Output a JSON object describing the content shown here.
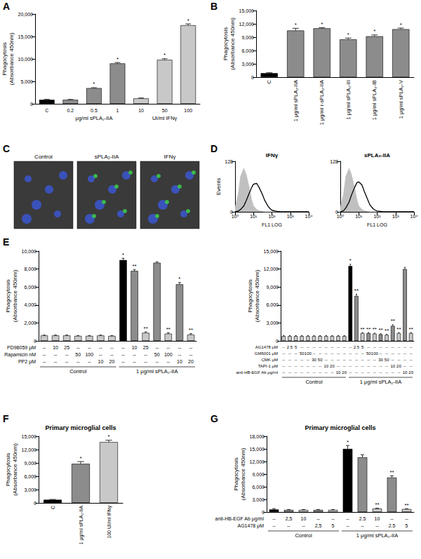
{
  "chart_data": [
    {
      "panel": "A",
      "type": "bar",
      "y_label": "Phagocytosis\n(Absorbance 450nm)",
      "categories": [
        "C",
        "0.2",
        "0.5",
        "1",
        "10",
        "50",
        "100"
      ],
      "groups": [
        null,
        "μg/ml sPLA₂-IIA",
        "μg/ml sPLA₂-IIA",
        "μg/ml sPLA₂-IIA",
        "UI/ml IFNγ",
        "UI/ml IFNγ",
        "UI/ml IFNγ"
      ],
      "values": [
        900,
        900,
        3500,
        9000,
        1200,
        9800,
        17500
      ],
      "errors": [
        100,
        80,
        100,
        200,
        100,
        250,
        300
      ],
      "annotations": [
        null,
        null,
        "*",
        "*",
        null,
        "*",
        "*"
      ],
      "colors": [
        "#000000",
        "#8c8c8c",
        "#8c8c8c",
        "#8c8c8c",
        "#c8c8c8",
        "#c8c8c8",
        "#c8c8c8"
      ],
      "ylim": [
        0,
        20000
      ],
      "yticks": [
        0,
        5000,
        10000,
        15000,
        20000
      ],
      "grid": false
    },
    {
      "panel": "B",
      "type": "bar",
      "y_label": "Phagocytosis\n(Absorbance 450nm)",
      "categories": [
        "C",
        "1 μg/ml sPLA₂-IIA",
        "1 μg/ml r-sPLA₂-IIA",
        "1 μg/ml sPLA₂-III",
        "1 μg/ml sPLA₂-IB",
        "1 μg/ml sPLA₂-V"
      ],
      "values": [
        900,
        10500,
        11000,
        8500,
        9200,
        10800
      ],
      "errors": [
        100,
        500,
        150,
        300,
        300,
        250
      ],
      "annotations": [
        null,
        "*",
        "*",
        "*",
        "*",
        "*"
      ],
      "colors": [
        "#000000",
        "#8c8c8c",
        "#8c8c8c",
        "#8c8c8c",
        "#8c8c8c",
        "#8c8c8c"
      ],
      "ylim": [
        0,
        15000
      ],
      "yticks": [
        0,
        3000,
        6000,
        9000,
        12000,
        15000
      ],
      "grid": false
    },
    {
      "panel": "D",
      "type": "line",
      "title": "IFNγ",
      "x_label": "FL1 LOG",
      "y_label": "Events",
      "log": "x",
      "x": [
        1,
        1.5,
        2,
        3,
        4,
        6,
        8,
        10,
        15,
        20,
        30,
        40,
        60,
        80,
        100,
        150,
        200,
        300,
        500,
        1000,
        10000
      ],
      "series": [
        {
          "type": "area",
          "color": "#c0c0c0",
          "values": [
            10,
            45,
            90,
            110,
            95,
            60,
            30,
            15,
            6,
            3,
            1,
            0,
            0,
            0,
            0,
            0,
            0,
            0,
            0,
            0,
            0
          ]
        },
        {
          "type": "line",
          "color": "#000000",
          "values": [
            0,
            2,
            6,
            15,
            28,
            48,
            62,
            70,
            72,
            62,
            45,
            30,
            15,
            8,
            4,
            2,
            1,
            0,
            0,
            0,
            0
          ]
        }
      ],
      "xlim": [
        1,
        10000
      ],
      "xticks": [
        {
          "value": 1,
          "label": "10⁰"
        },
        {
          "value": 10,
          "label": "10¹"
        },
        {
          "value": 100,
          "label": "10²"
        },
        {
          "value": 1000,
          "label": "10³"
        },
        {
          "value": 10000,
          "label": "10⁴"
        }
      ],
      "ylim": [
        0,
        128
      ],
      "yticks": [
        0,
        128
      ],
      "grid": false
    },
    {
      "type": "line",
      "title": "sPLA₂-IIA",
      "x_label": "FL1 LOG",
      "log": "x",
      "x": [
        1,
        1.5,
        2,
        3,
        4,
        6,
        8,
        10,
        15,
        20,
        30,
        40,
        60,
        80,
        100,
        150,
        200,
        300,
        500,
        1000,
        10000
      ],
      "series": [
        {
          "type": "area",
          "color": "#c0c0c0",
          "values": [
            10,
            45,
            90,
            110,
            95,
            60,
            30,
            15,
            6,
            3,
            1,
            0,
            0,
            0,
            0,
            0,
            0,
            0,
            0,
            0,
            0
          ]
        },
        {
          "type": "line",
          "color": "#000000",
          "values": [
            0,
            3,
            10,
            25,
            42,
            62,
            74,
            76,
            68,
            52,
            32,
            18,
            8,
            4,
            2,
            1,
            0,
            0,
            0,
            0,
            0
          ]
        }
      ],
      "xlim": [
        1,
        10000
      ],
      "xticks": [
        {
          "value": 1,
          "label": "10⁰"
        },
        {
          "value": 10,
          "label": "10¹"
        },
        {
          "value": 100,
          "label": "10²"
        },
        {
          "value": 1000,
          "label": "10³"
        },
        {
          "value": 10000,
          "label": "10⁴"
        }
      ],
      "ylim": [
        0,
        128
      ],
      "yticks": [
        0,
        128
      ],
      "grid": false
    },
    {
      "panel": "E",
      "type": "bar",
      "y_label": "Phagocytosis\n(Absorbance 450nm)",
      "table": {
        "rows": [
          {
            "label": "PD98059 μM",
            "values": [
              "--",
              "10",
              "25",
              "--",
              "--",
              "--",
              "--",
              "--",
              "10",
              "25",
              "--",
              "--",
              "--",
              "--"
            ]
          },
          {
            "label": "Rapamicin nM",
            "values": [
              "--",
              "--",
              "--",
              "50",
              "100",
              "--",
              "--",
              "--",
              "--",
              "--",
              "50",
              "100",
              "--",
              "--"
            ]
          },
          {
            "label": "PP2 μM",
            "values": [
              "--",
              "--",
              "--",
              "--",
              "--",
              "10",
              "20",
              "--",
              "--",
              "--",
              "--",
              "--",
              "10",
              "20"
            ]
          }
        ]
      },
      "groups": [
        "Control",
        "Control",
        "Control",
        "Control",
        "Control",
        "Control",
        "Control",
        "1 μg/ml sPLA₂-IIA",
        "1 μg/ml sPLA₂-IIA",
        "1 μg/ml sPLA₂-IIA",
        "1 μg/ml sPLA₂-IIA",
        "1 μg/ml sPLA₂-IIA",
        "1 μg/ml sPLA₂-IIA",
        "1 μg/ml sPLA₂-IIA"
      ],
      "values": [
        600,
        600,
        600,
        550,
        550,
        600,
        550,
        9000,
        7800,
        900,
        8700,
        800,
        6300,
        700
      ],
      "errors": [
        50,
        50,
        50,
        50,
        50,
        50,
        50,
        200,
        150,
        100,
        100,
        100,
        200,
        100
      ],
      "annotations": [
        null,
        null,
        null,
        null,
        null,
        null,
        null,
        "*",
        "**",
        "**",
        null,
        "**",
        "*",
        "**"
      ],
      "colors": [
        "#c8c8c8",
        "#c8c8c8",
        "#c8c8c8",
        "#c8c8c8",
        "#c8c8c8",
        "#c8c8c8",
        "#c8c8c8",
        "#000000",
        "#8c8c8c",
        "#c8c8c8",
        "#8c8c8c",
        "#c8c8c8",
        "#8c8c8c",
        "#c8c8c8"
      ],
      "ylim": [
        0,
        10000
      ],
      "yticks": [
        0,
        2000,
        4000,
        6000,
        8000,
        10000
      ],
      "grid": false
    },
    {
      "type": "bar",
      "y_label": "Phagocytosis\n(Absorbance 450nm)",
      "table": {
        "rows": [
          {
            "label": "AG1478 μM",
            "values": [
              "--",
              "2.5",
              "5",
              "--",
              "--",
              "--",
              "--",
              "--",
              "--",
              "--",
              "--",
              "--",
              "2.5",
              "5",
              "--",
              "--",
              "--",
              "--",
              "--",
              "--",
              "--",
              "--"
            ]
          },
          {
            "label": "GM6001 μM",
            "values": [
              "--",
              "--",
              "--",
              "50",
              "100",
              "--",
              "--",
              "--",
              "--",
              "--",
              "--",
              "--",
              "--",
              "--",
              "50",
              "100",
              "--",
              "--",
              "--",
              "--",
              "--",
              "--"
            ]
          },
          {
            "label": "CMK μM",
            "values": [
              "--",
              "--",
              "--",
              "--",
              "--",
              "30",
              "50",
              "--",
              "--",
              "--",
              "--",
              "--",
              "--",
              "--",
              "--",
              "--",
              "30",
              "50",
              "--",
              "--",
              "--",
              "--"
            ]
          },
          {
            "label": "TAPI-1 μM",
            "values": [
              "--",
              "--",
              "--",
              "--",
              "--",
              "--",
              "--",
              "10",
              "20",
              "--",
              "--",
              "--",
              "--",
              "--",
              "--",
              "--",
              "--",
              "--",
              "10",
              "20",
              "--",
              "--"
            ]
          },
          {
            "label": "anti-HB-EGF Ab μg/ml",
            "values": [
              "--",
              "--",
              "--",
              "--",
              "--",
              "--",
              "--",
              "--",
              "--",
              "10",
              "20",
              "--",
              "--",
              "--",
              "--",
              "--",
              "--",
              "--",
              "--",
              "--",
              "10",
              "20"
            ]
          }
        ]
      },
      "groups": [
        "Control",
        "Control",
        "Control",
        "Control",
        "Control",
        "Control",
        "Control",
        "Control",
        "Control",
        "Control",
        "Control",
        "1 μg/ml sPLA₂-IIA",
        "1 μg/ml sPLA₂-IIA",
        "1 μg/ml sPLA₂-IIA",
        "1 μg/ml sPLA₂-IIA",
        "1 μg/ml sPLA₂-IIA",
        "1 μg/ml sPLA₂-IIA",
        "1 μg/ml sPLA₂-IIA",
        "1 μg/ml sPLA₂-IIA",
        "1 μg/ml sPLA₂-IIA",
        "1 μg/ml sPLA₂-IIA",
        "1 μg/ml sPLA₂-IIA"
      ],
      "values": [
        800,
        800,
        800,
        800,
        800,
        800,
        800,
        800,
        800,
        800,
        800,
        12500,
        7500,
        1300,
        1300,
        1200,
        1100,
        1000,
        2500,
        1300,
        12000,
        1300
      ],
      "errors": [
        80,
        80,
        80,
        80,
        80,
        80,
        80,
        80,
        80,
        80,
        80,
        300,
        300,
        100,
        100,
        100,
        100,
        100,
        200,
        100,
        300,
        100
      ],
      "annotations": [
        null,
        null,
        null,
        null,
        null,
        null,
        null,
        null,
        null,
        null,
        null,
        "*",
        "**",
        "**",
        "**",
        "**",
        "**",
        "**",
        "**",
        "**",
        null,
        "**"
      ],
      "colors": [
        "#c8c8c8",
        "#c8c8c8",
        "#c8c8c8",
        "#c8c8c8",
        "#c8c8c8",
        "#c8c8c8",
        "#c8c8c8",
        "#c8c8c8",
        "#c8c8c8",
        "#c8c8c8",
        "#c8c8c8",
        "#000000",
        "#8c8c8c",
        "#c8c8c8",
        "#8c8c8c",
        "#c8c8c8",
        "#8c8c8c",
        "#c8c8c8",
        "#8c8c8c",
        "#c8c8c8",
        "#8c8c8c",
        "#c8c8c8"
      ],
      "ylim": [
        0,
        15000
      ],
      "yticks": [
        0,
        3000,
        6000,
        9000,
        12000,
        15000
      ],
      "grid": false
    },
    {
      "panel": "F",
      "type": "bar",
      "title": "Primary microglial cells",
      "y_label": "Phagocytosis\n(Absorbance 450nm)",
      "categories": [
        "C",
        "1 μg/ml sPLA₂-IIA",
        "100 UI/ml IFNγ"
      ],
      "values": [
        700,
        8800,
        13700
      ],
      "errors": [
        80,
        500,
        400
      ],
      "annotations": [
        null,
        "*",
        "*"
      ],
      "colors": [
        "#000000",
        "#8c8c8c",
        "#c8c8c8"
      ],
      "ylim": [
        0,
        15000
      ],
      "yticks": [
        0,
        3000,
        6000,
        9000,
        12000,
        15000
      ],
      "grid": false
    },
    {
      "panel": "G",
      "type": "bar",
      "title": "Primary microglial cells",
      "y_label": "Phagocytosis\n(Absorbance 450nm)",
      "table": {
        "rows": [
          {
            "label": "anti-HB-EGF Ab μg/ml",
            "values": [
              "--",
              "2,5",
              "10",
              "--",
              "--",
              "--",
              "2.5",
              "10",
              "--",
              "--"
            ]
          },
          {
            "label": "AG1478 μM",
            "values": [
              "--",
              "--",
              "--",
              "2,5",
              "5",
              "--",
              "--",
              "--",
              "2.5",
              "5"
            ]
          }
        ]
      },
      "groups": [
        "Control",
        "Control",
        "Control",
        "Control",
        "Control",
        "1 μg/ml sPLA₂-IIA",
        "1 μg/ml sPLA₂-IIA",
        "1 μg/ml sPLA₂-IIA",
        "1 μg/ml sPLA₂-IIA",
        "1 μg/ml sPLA₂-IIA"
      ],
      "values": [
        600,
        500,
        500,
        500,
        500,
        15000,
        13000,
        800,
        8200,
        700
      ],
      "errors": [
        200,
        100,
        100,
        100,
        100,
        800,
        600,
        100,
        400,
        100
      ],
      "annotations": [
        null,
        null,
        null,
        null,
        null,
        "*",
        null,
        "**",
        "**",
        "**"
      ],
      "colors": [
        "#000000",
        "#8c8c8c",
        "#c8c8c8",
        "#8c8c8c",
        "#c8c8c8",
        "#000000",
        "#8c8c8c",
        "#c8c8c8",
        "#8c8c8c",
        "#c8c8c8"
      ],
      "ylim": [
        0,
        18000
      ],
      "yticks": [
        0,
        3000,
        6000,
        9000,
        12000,
        15000,
        18000
      ],
      "grid": false
    }
  ],
  "micrographs": {
    "panel": "C",
    "labels": [
      "Control",
      "sPLA₂-IIA",
      "IFNγ"
    ]
  }
}
